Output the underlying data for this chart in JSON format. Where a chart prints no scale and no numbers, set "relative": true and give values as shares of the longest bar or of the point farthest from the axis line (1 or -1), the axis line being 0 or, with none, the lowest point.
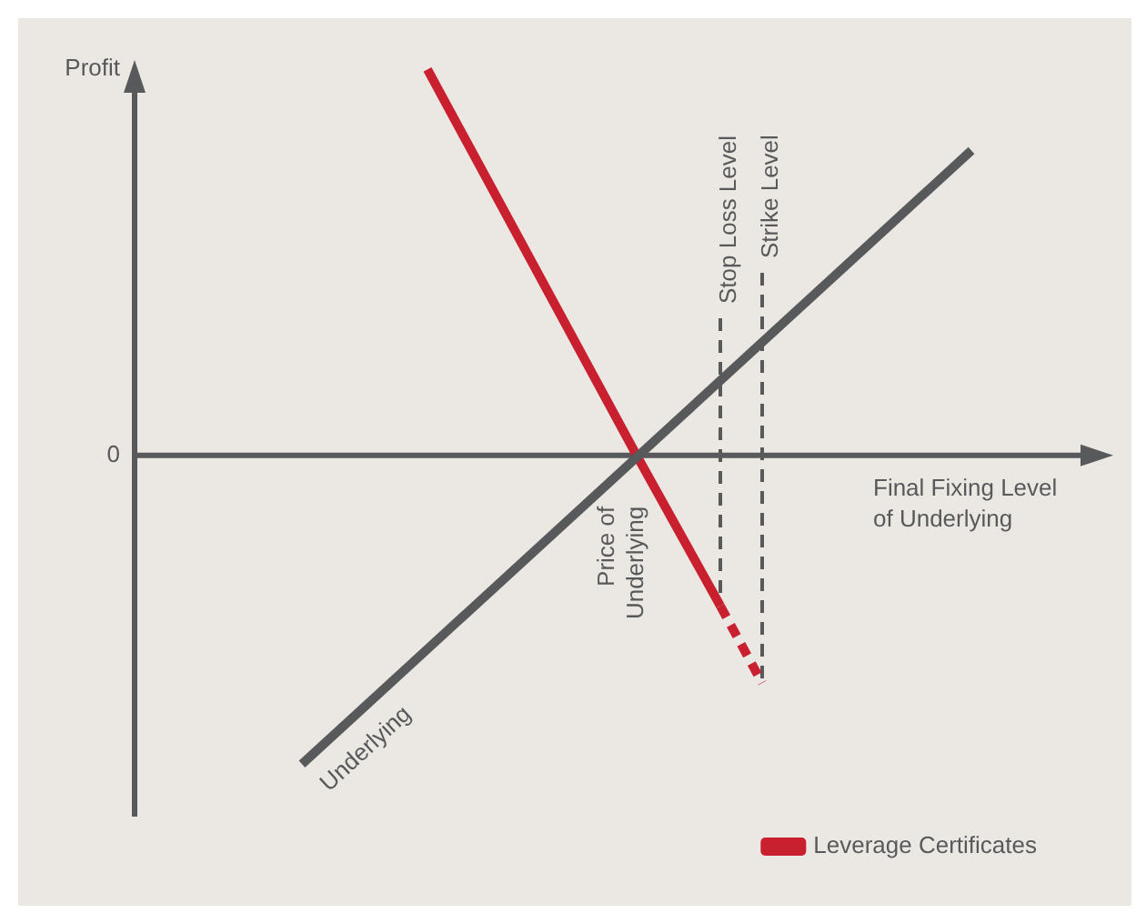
{
  "chart_data": {
    "type": "line",
    "relative": true,
    "ylabel": "Profit",
    "xlabel": "Final Fixing Level of Underlying",
    "legend": "bottom right",
    "line_style": "solid",
    "marker": "none",
    "categories": [
      null,
      null,
      null,
      null,
      null,
      null,
      null,
      null,
      null,
      null,
      null,
      null,
      null,
      null,
      null,
      null,
      null,
      null,
      null,
      null,
      null,
      null,
      null
    ],
    "series": [
      {
        "name": "Underlying",
        "color": "#58595b",
        "values": [
          null,
          null,
          null,
          null,
          -0.8,
          null,
          null,
          null,
          null,
          null,
          null,
          null,
          null,
          null,
          null,
          null,
          null,
          null,
          null,
          null,
          0.79,
          null,
          null
        ]
      },
      {
        "name": "Leverage Certificates",
        "color": "#c8202f",
        "values": [
          null,
          null,
          null,
          null,
          null,
          null,
          null,
          1,
          null,
          null,
          null,
          null,
          0,
          null,
          -0.39,
          null,
          null,
          null,
          null,
          null,
          null,
          null,
          null
        ]
      },
      {
        "color": "#c8202f",
        "line_style": "dashed",
        "values": [
          null,
          null,
          null,
          null,
          null,
          null,
          null,
          null,
          null,
          null,
          null,
          null,
          null,
          null,
          -0.39,
          -0.59,
          null,
          null,
          null,
          null,
          null,
          null,
          null
        ]
      }
    ],
    "annotations": [
      "0",
      "Price of Underlying",
      "Stop Loss Level",
      "Strike Level"
    ]
  }
}
